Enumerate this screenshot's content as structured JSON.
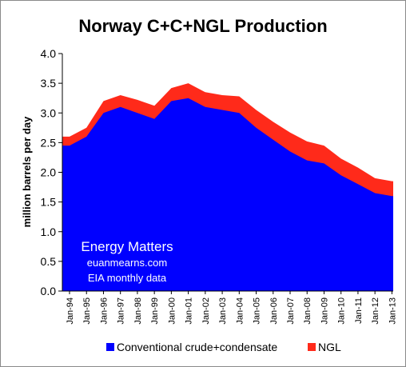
{
  "chart_data": {
    "type": "area",
    "title": "Norway C+C+NGL Production",
    "xlabel": "",
    "ylabel": "million barrels per day",
    "ylim": [
      0,
      4
    ],
    "yticks": [
      "0.0",
      "0.5",
      "1.0",
      "1.5",
      "2.0",
      "2.5",
      "3.0",
      "3.5",
      "4.0"
    ],
    "xticks": [
      "Jan-94",
      "Jan-95",
      "Jan-96",
      "Jan-97",
      "Jan-98",
      "Jan-99",
      "Jan-00",
      "Jan-01",
      "Jan-02",
      "Jan-03",
      "Jan-04",
      "Jan-05",
      "Jan-06",
      "Jan-07",
      "Jan-08",
      "Jan-09",
      "Jan-10",
      "Jan-11",
      "Jan-12",
      "Jan-13"
    ],
    "stacked": true,
    "grid": false,
    "legend_position": "bottom",
    "x": [
      "1994",
      "1995",
      "1996",
      "1997",
      "1998",
      "1999",
      "2000",
      "2001",
      "2002",
      "2003",
      "2004",
      "2005",
      "2006",
      "2007",
      "2008",
      "2009",
      "2010",
      "2011",
      "2012",
      "2013"
    ],
    "series": [
      {
        "name": "Conventional crude+condensate",
        "color": "#0000ff",
        "values": [
          2.45,
          2.6,
          3.0,
          3.1,
          3.0,
          2.9,
          3.2,
          3.25,
          3.1,
          3.05,
          3.0,
          2.75,
          2.55,
          2.35,
          2.2,
          2.15,
          1.95,
          1.8,
          1.65,
          1.6
        ]
      },
      {
        "name": "NGL",
        "color": "#ff2a1a",
        "values": [
          0.15,
          0.15,
          0.2,
          0.2,
          0.22,
          0.22,
          0.22,
          0.25,
          0.25,
          0.25,
          0.28,
          0.3,
          0.3,
          0.32,
          0.32,
          0.3,
          0.28,
          0.28,
          0.25,
          0.25
        ]
      }
    ],
    "annotations": [
      "Energy Matters",
      "euanmearns.com",
      "EIA monthly data"
    ]
  }
}
